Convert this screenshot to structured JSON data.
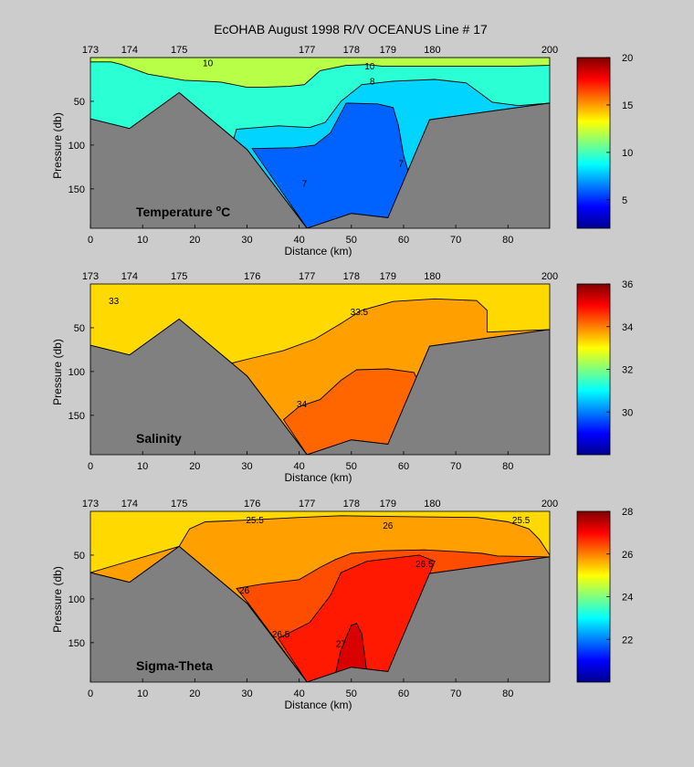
{
  "title": "EcOHAB   August 1998   R/V OCEANUS   Line # 17",
  "chart_data": [
    {
      "type": "heatmap",
      "label": "Temperature °C",
      "label_main": "Temperature ",
      "label_sup": "o",
      "label_tail": "C",
      "xlabel": "Distance (km)",
      "ylabel": "Pressure (db)",
      "xlim": [
        0,
        88
      ],
      "ylim": [
        195,
        0
      ],
      "xticks": [
        0,
        10,
        20,
        30,
        40,
        50,
        60,
        70,
        80
      ],
      "yticks": [
        50,
        100,
        150
      ],
      "stations": [
        {
          "label": "173",
          "x": 0
        },
        {
          "label": "174",
          "x": 7.5
        },
        {
          "label": "175",
          "x": 17
        },
        {
          "label": "177",
          "x": 41.5
        },
        {
          "label": "178",
          "x": 50
        },
        {
          "label": "179",
          "x": 57
        },
        {
          "label": "180",
          "x": 65.5
        },
        {
          "label": "200",
          "x": 88
        }
      ],
      "colorbar": {
        "min": 2,
        "max": 20,
        "ticks": [
          5,
          10,
          15,
          20
        ]
      },
      "bottom": [
        [
          0,
          70
        ],
        [
          7.5,
          81
        ],
        [
          17,
          40
        ],
        [
          30,
          105
        ],
        [
          41.5,
          195
        ],
        [
          50,
          178
        ],
        [
          57,
          183
        ],
        [
          65,
          71
        ],
        [
          88,
          52
        ]
      ],
      "regions": [
        {
          "value": 9.5,
          "poly": [
            [
              0,
              0
            ],
            [
              88,
              0
            ],
            [
              88,
              52
            ],
            [
              65,
              71
            ],
            [
              57,
              183
            ],
            [
              50,
              178
            ],
            [
              41.5,
              195
            ],
            [
              30,
              105
            ],
            [
              17,
              40
            ],
            [
              7.5,
              81
            ],
            [
              0,
              70
            ]
          ]
        },
        {
          "value": 12.0,
          "poly": [
            [
              0,
              0
            ],
            [
              88,
              0
            ],
            [
              88,
              9
            ],
            [
              81,
              10
            ],
            [
              76,
              10
            ],
            [
              56,
              10
            ],
            [
              53,
              8
            ],
            [
              49,
              9
            ],
            [
              44,
              15
            ],
            [
              41,
              31
            ],
            [
              38,
              33
            ],
            [
              33,
              34
            ],
            [
              30,
              34
            ],
            [
              25,
              28
            ],
            [
              22,
              27
            ],
            [
              18,
              26
            ],
            [
              11,
              19
            ],
            [
              6,
              8
            ],
            [
              4,
              5
            ],
            [
              0,
              5
            ]
          ]
        },
        {
          "value": 8.0,
          "poly": [
            [
              27,
              102
            ],
            [
              28,
              82
            ],
            [
              36,
              78
            ],
            [
              42,
              80
            ],
            [
              45,
              74
            ],
            [
              48,
              50
            ],
            [
              52,
              31
            ],
            [
              58,
              27
            ],
            [
              66,
              25
            ],
            [
              72,
              29
            ],
            [
              77,
              51
            ],
            [
              82,
              55
            ],
            [
              88,
              52
            ],
            [
              65,
              71
            ],
            [
              57,
              183
            ],
            [
              50,
              178
            ],
            [
              41.5,
              195
            ],
            [
              30,
              105
            ]
          ]
        },
        {
          "value": 6.0,
          "poly": [
            [
              31,
              104
            ],
            [
              39,
              103
            ],
            [
              43,
              100
            ],
            [
              46,
              86
            ],
            [
              49,
              52
            ],
            [
              55,
              53
            ],
            [
              58,
              57
            ],
            [
              59,
              77
            ],
            [
              60,
              112
            ],
            [
              61,
              132
            ],
            [
              58,
              170
            ],
            [
              57,
              183
            ],
            [
              50,
              178
            ],
            [
              41.5,
              195
            ]
          ]
        }
      ],
      "contour_labels": [
        {
          "text": "10",
          "x": 22.5,
          "y": 7
        },
        {
          "text": "10",
          "x": 53.5,
          "y": 11
        },
        {
          "text": "8",
          "x": 54,
          "y": 28
        },
        {
          "text": "7",
          "x": 59.5,
          "y": 122
        },
        {
          "text": "7",
          "x": 41,
          "y": 145
        }
      ]
    },
    {
      "type": "heatmap",
      "label": "Salinity",
      "label_main": "Salinity",
      "label_sup": "",
      "label_tail": "",
      "xlabel": "Distance (km)",
      "ylabel": "Pressure (db)",
      "xlim": [
        0,
        88
      ],
      "ylim": [
        195,
        0
      ],
      "xticks": [
        0,
        10,
        20,
        30,
        40,
        50,
        60,
        70,
        80
      ],
      "yticks": [
        50,
        100,
        150
      ],
      "stations": [
        {
          "label": "173",
          "x": 0
        },
        {
          "label": "174",
          "x": 7.5
        },
        {
          "label": "175",
          "x": 17
        },
        {
          "label": "176",
          "x": 31
        },
        {
          "label": "177",
          "x": 41.5
        },
        {
          "label": "178",
          "x": 50
        },
        {
          "label": "179",
          "x": 57
        },
        {
          "label": "180",
          "x": 65.5
        },
        {
          "label": "200",
          "x": 88
        }
      ],
      "colorbar": {
        "min": 28,
        "max": 36,
        "ticks": [
          30,
          32,
          34,
          36
        ]
      },
      "bottom": [
        [
          0,
          70
        ],
        [
          7.5,
          81
        ],
        [
          17,
          40
        ],
        [
          30,
          105
        ],
        [
          41.5,
          195
        ],
        [
          50,
          178
        ],
        [
          57,
          183
        ],
        [
          65,
          71
        ],
        [
          88,
          52
        ]
      ],
      "regions": [
        {
          "value": 33.3,
          "poly": [
            [
              0,
              0
            ],
            [
              88,
              0
            ],
            [
              88,
              52
            ],
            [
              65,
              71
            ],
            [
              57,
              183
            ],
            [
              50,
              178
            ],
            [
              41.5,
              195
            ],
            [
              30,
              105
            ],
            [
              17,
              40
            ],
            [
              7.5,
              81
            ],
            [
              0,
              70
            ]
          ]
        },
        {
          "value": 33.75,
          "poly": [
            [
              26,
              92
            ],
            [
              30,
              86
            ],
            [
              37,
              76
            ],
            [
              43,
              63
            ],
            [
              48,
              45
            ],
            [
              52,
              30
            ],
            [
              58,
              20
            ],
            [
              66,
              17
            ],
            [
              74,
              19
            ],
            [
              76,
              30
            ],
            [
              76,
              55
            ],
            [
              88,
              52
            ],
            [
              65,
              71
            ],
            [
              57,
              183
            ],
            [
              50,
              178
            ],
            [
              41.5,
              195
            ],
            [
              30,
              105
            ]
          ]
        },
        {
          "value": 34.2,
          "poly": [
            [
              37,
              155
            ],
            [
              40,
              140
            ],
            [
              44,
              132
            ],
            [
              48,
              110
            ],
            [
              51,
              98
            ],
            [
              57,
              97
            ],
            [
              62,
              101
            ],
            [
              63,
              115
            ],
            [
              61,
              150
            ],
            [
              57,
              183
            ],
            [
              50,
              178
            ],
            [
              41.5,
              195
            ]
          ]
        }
      ],
      "contour_labels": [
        {
          "text": "33",
          "x": 4.5,
          "y": 20
        },
        {
          "text": "33.5",
          "x": 51.5,
          "y": 33
        },
        {
          "text": "34",
          "x": 40.5,
          "y": 138
        }
      ]
    },
    {
      "type": "heatmap",
      "label": "Sigma-Theta",
      "label_main": "Sigma-Theta",
      "label_sup": "",
      "label_tail": "",
      "xlabel": "Distance (km)",
      "ylabel": "Pressure (db)",
      "xlim": [
        0,
        88
      ],
      "ylim": [
        195,
        0
      ],
      "xticks": [
        0,
        10,
        20,
        30,
        40,
        50,
        60,
        70,
        80
      ],
      "yticks": [
        50,
        100,
        150
      ],
      "stations": [
        {
          "label": "173",
          "x": 0
        },
        {
          "label": "174",
          "x": 7.5
        },
        {
          "label": "175",
          "x": 17
        },
        {
          "label": "176",
          "x": 31
        },
        {
          "label": "177",
          "x": 41.5
        },
        {
          "label": "178",
          "x": 50
        },
        {
          "label": "179",
          "x": 57
        },
        {
          "label": "180",
          "x": 65.5
        },
        {
          "label": "200",
          "x": 88
        }
      ],
      "colorbar": {
        "min": 20,
        "max": 28,
        "ticks": [
          22,
          24,
          26,
          28
        ]
      },
      "bottom": [
        [
          0,
          70
        ],
        [
          7.5,
          81
        ],
        [
          17,
          40
        ],
        [
          30,
          105
        ],
        [
          41.5,
          195
        ],
        [
          50,
          178
        ],
        [
          57,
          183
        ],
        [
          65,
          71
        ],
        [
          88,
          52
        ]
      ],
      "regions": [
        {
          "value": 25.3,
          "poly": [
            [
              0,
              0
            ],
            [
              88,
              0
            ],
            [
              88,
              52
            ],
            [
              65,
              71
            ],
            [
              57,
              183
            ],
            [
              50,
              178
            ],
            [
              41.5,
              195
            ],
            [
              30,
              105
            ],
            [
              17,
              40
            ],
            [
              7.5,
              81
            ],
            [
              0,
              70
            ]
          ]
        },
        {
          "value": 25.75,
          "poly": [
            [
              0,
              70
            ],
            [
              7.5,
              81
            ],
            [
              17,
              40
            ],
            [
              19,
              20
            ],
            [
              22,
              12
            ],
            [
              30,
              10
            ],
            [
              40,
              7
            ],
            [
              48,
              5
            ],
            [
              60,
              6
            ],
            [
              74,
              7
            ],
            [
              80,
              12
            ],
            [
              84,
              20
            ],
            [
              86,
              32
            ],
            [
              88,
              50
            ],
            [
              88,
              52
            ],
            [
              65,
              71
            ],
            [
              57,
              183
            ],
            [
              50,
              178
            ],
            [
              41.5,
              195
            ],
            [
              30,
              105
            ],
            [
              17,
              40
            ]
          ]
        },
        {
          "value": 26.4,
          "poly": [
            [
              30,
              103
            ],
            [
              28,
              88
            ],
            [
              33,
              83
            ],
            [
              40,
              78
            ],
            [
              44,
              64
            ],
            [
              47,
              55
            ],
            [
              50,
              48
            ],
            [
              56,
              45
            ],
            [
              64,
              44
            ],
            [
              70,
              46
            ],
            [
              75,
              48
            ],
            [
              78,
              51
            ],
            [
              88,
              52
            ],
            [
              65,
              71
            ],
            [
              57,
              183
            ],
            [
              50,
              178
            ],
            [
              41.5,
              195
            ]
          ]
        },
        {
          "value": 26.8,
          "poly": [
            [
              36,
              145
            ],
            [
              42,
              127
            ],
            [
              46,
              96
            ],
            [
              48,
              70
            ],
            [
              53,
              57
            ],
            [
              63,
              50
            ],
            [
              66,
              57
            ],
            [
              65,
              71
            ],
            [
              57,
              183
            ],
            [
              50,
              178
            ],
            [
              41.5,
              195
            ]
          ]
        },
        {
          "value": 27.3,
          "poly": [
            [
              46,
              193
            ],
            [
              47,
              185
            ],
            [
              48,
              158
            ],
            [
              50,
              130
            ],
            [
              51,
              128
            ],
            [
              52,
              140
            ],
            [
              53,
              185
            ],
            [
              50,
              187
            ]
          ]
        }
      ],
      "contour_labels": [
        {
          "text": "25.5",
          "x": 31.5,
          "y": 11
        },
        {
          "text": "25.5",
          "x": 82.5,
          "y": 11
        },
        {
          "text": "26",
          "x": 57,
          "y": 17
        },
        {
          "text": "26.5",
          "x": 64,
          "y": 61
        },
        {
          "text": "26",
          "x": 29.5,
          "y": 91
        },
        {
          "text": "26.5",
          "x": 36.5,
          "y": 141
        },
        {
          "text": "27",
          "x": 48,
          "y": 152
        }
      ]
    }
  ]
}
